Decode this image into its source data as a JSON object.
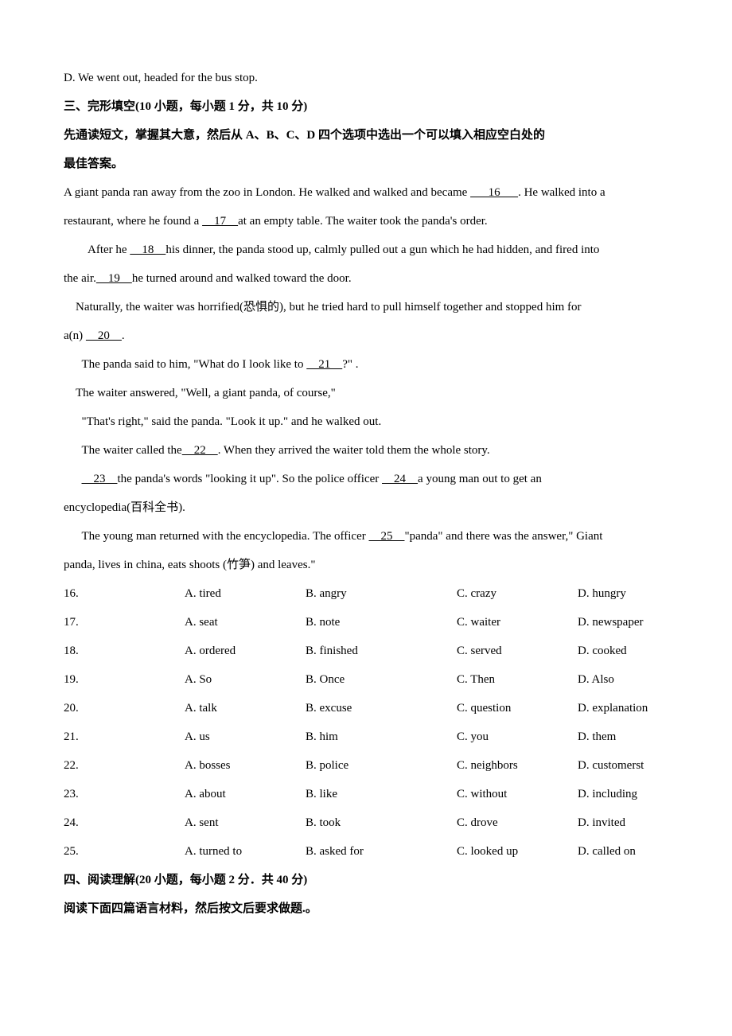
{
  "option_d": "D. We went out, headed for the bus stop.",
  "section3_title": "三、完形填空(10 小题，每小题 1 分，共 10 分)",
  "section3_instr1": "先通读短文，掌握其大意，然后从 A、B、C、D 四个选项中选出一个可以填入相应空白处的",
  "section3_instr2": "最佳答案。",
  "passage": {
    "p1a": "A giant panda ran away from the zoo in London. He walked and walked and became ",
    "p1_blank16": "      16      ",
    "p1b": ". He walked into a",
    "p2a": "restaurant, where he found a ",
    "p2_blank17": "    17    ",
    "p2b": "at an empty table. The waiter took the panda's order.",
    "p3a": "After he ",
    "p3_blank18": "    18    ",
    "p3b": "his dinner, the panda stood up, calmly pulled out a gun which he had hidden, and fired into",
    "p4a": "the air.",
    "p4_blank19": "    19    ",
    "p4b": "he turned around and walked toward the door.",
    "p5a": "Naturally, the waiter was horrified(恐惧的), but he tried hard to pull himself together and stopped him for",
    "p6a": "a(n) ",
    "p6_blank20": "    20    ",
    "p6b": ".",
    "p7a": "The panda said to him, \"What do I look like to ",
    "p7_blank21": "    21    ",
    "p7b": "?\"  .",
    "p8": "The waiter answered, \"Well, a giant panda, of course,\"",
    "p9": "\"That's right,\" said the panda. \"Look it up.\" and he walked out.",
    "p10a": "The waiter called the",
    "p10_blank22": "    22    ",
    "p10b": ". When they arrived the waiter told them the whole story.",
    "p11_blank23": "    23    ",
    "p11a": "the panda's words \"looking it up\". So the police officer ",
    "p11_blank24": "    24    ",
    "p11b": "a young man out to get an",
    "p12": "encyclopedia(百科全书).",
    "p13a": "The young man returned with the encyclopedia. The officer ",
    "p13_blank25": "    25    ",
    "p13b": "\"panda\" and there was the answer,\" Giant",
    "p14": "panda, lives in china, eats shoots (竹笋) and leaves.\""
  },
  "questions": [
    {
      "num": "16.",
      "a": "A. tired",
      "b": "B. angry",
      "c": "C. crazy",
      "d": "D. hungry"
    },
    {
      "num": "17.",
      "a": "A. seat",
      "b": "B. note",
      "c": "C. waiter",
      "d": "D. newspaper"
    },
    {
      "num": "18.",
      "a": "A. ordered",
      "b": "B. finished",
      "c": "C. served",
      "d": "D. cooked"
    },
    {
      "num": "19.",
      "a": "A. So",
      "b": "B. Once",
      "c": "C. Then",
      "d": "D. Also"
    },
    {
      "num": "20.",
      "a": "A. talk",
      "b": "B. excuse",
      "c": "C. question",
      "d": "D. explanation"
    },
    {
      "num": "21.",
      "a": "A. us",
      "b": "B. him",
      "c": "C. you",
      "d": "D. them"
    },
    {
      "num": "22.",
      "a": "A. bosses",
      "b": "B. police",
      "c": "C. neighbors",
      "d": "D. customerst"
    },
    {
      "num": "23.",
      "a": "A. about",
      "b": "B. like",
      "c": "C. without",
      "d": "D. including"
    },
    {
      "num": "24.",
      "a": "A. sent",
      "b": "B. took",
      "c": "C. drove",
      "d": "D. invited"
    },
    {
      "num": "25.",
      "a": "A. turned to",
      "b": "B. asked for",
      "c": "C. looked up",
      "d": "D. called on"
    }
  ],
  "section4_title": "四、阅读理解(20 小题，每小题 2 分．共 40 分)",
  "section4_instr": "阅读下面四篇语言材料，然后按文后要求做题.。"
}
